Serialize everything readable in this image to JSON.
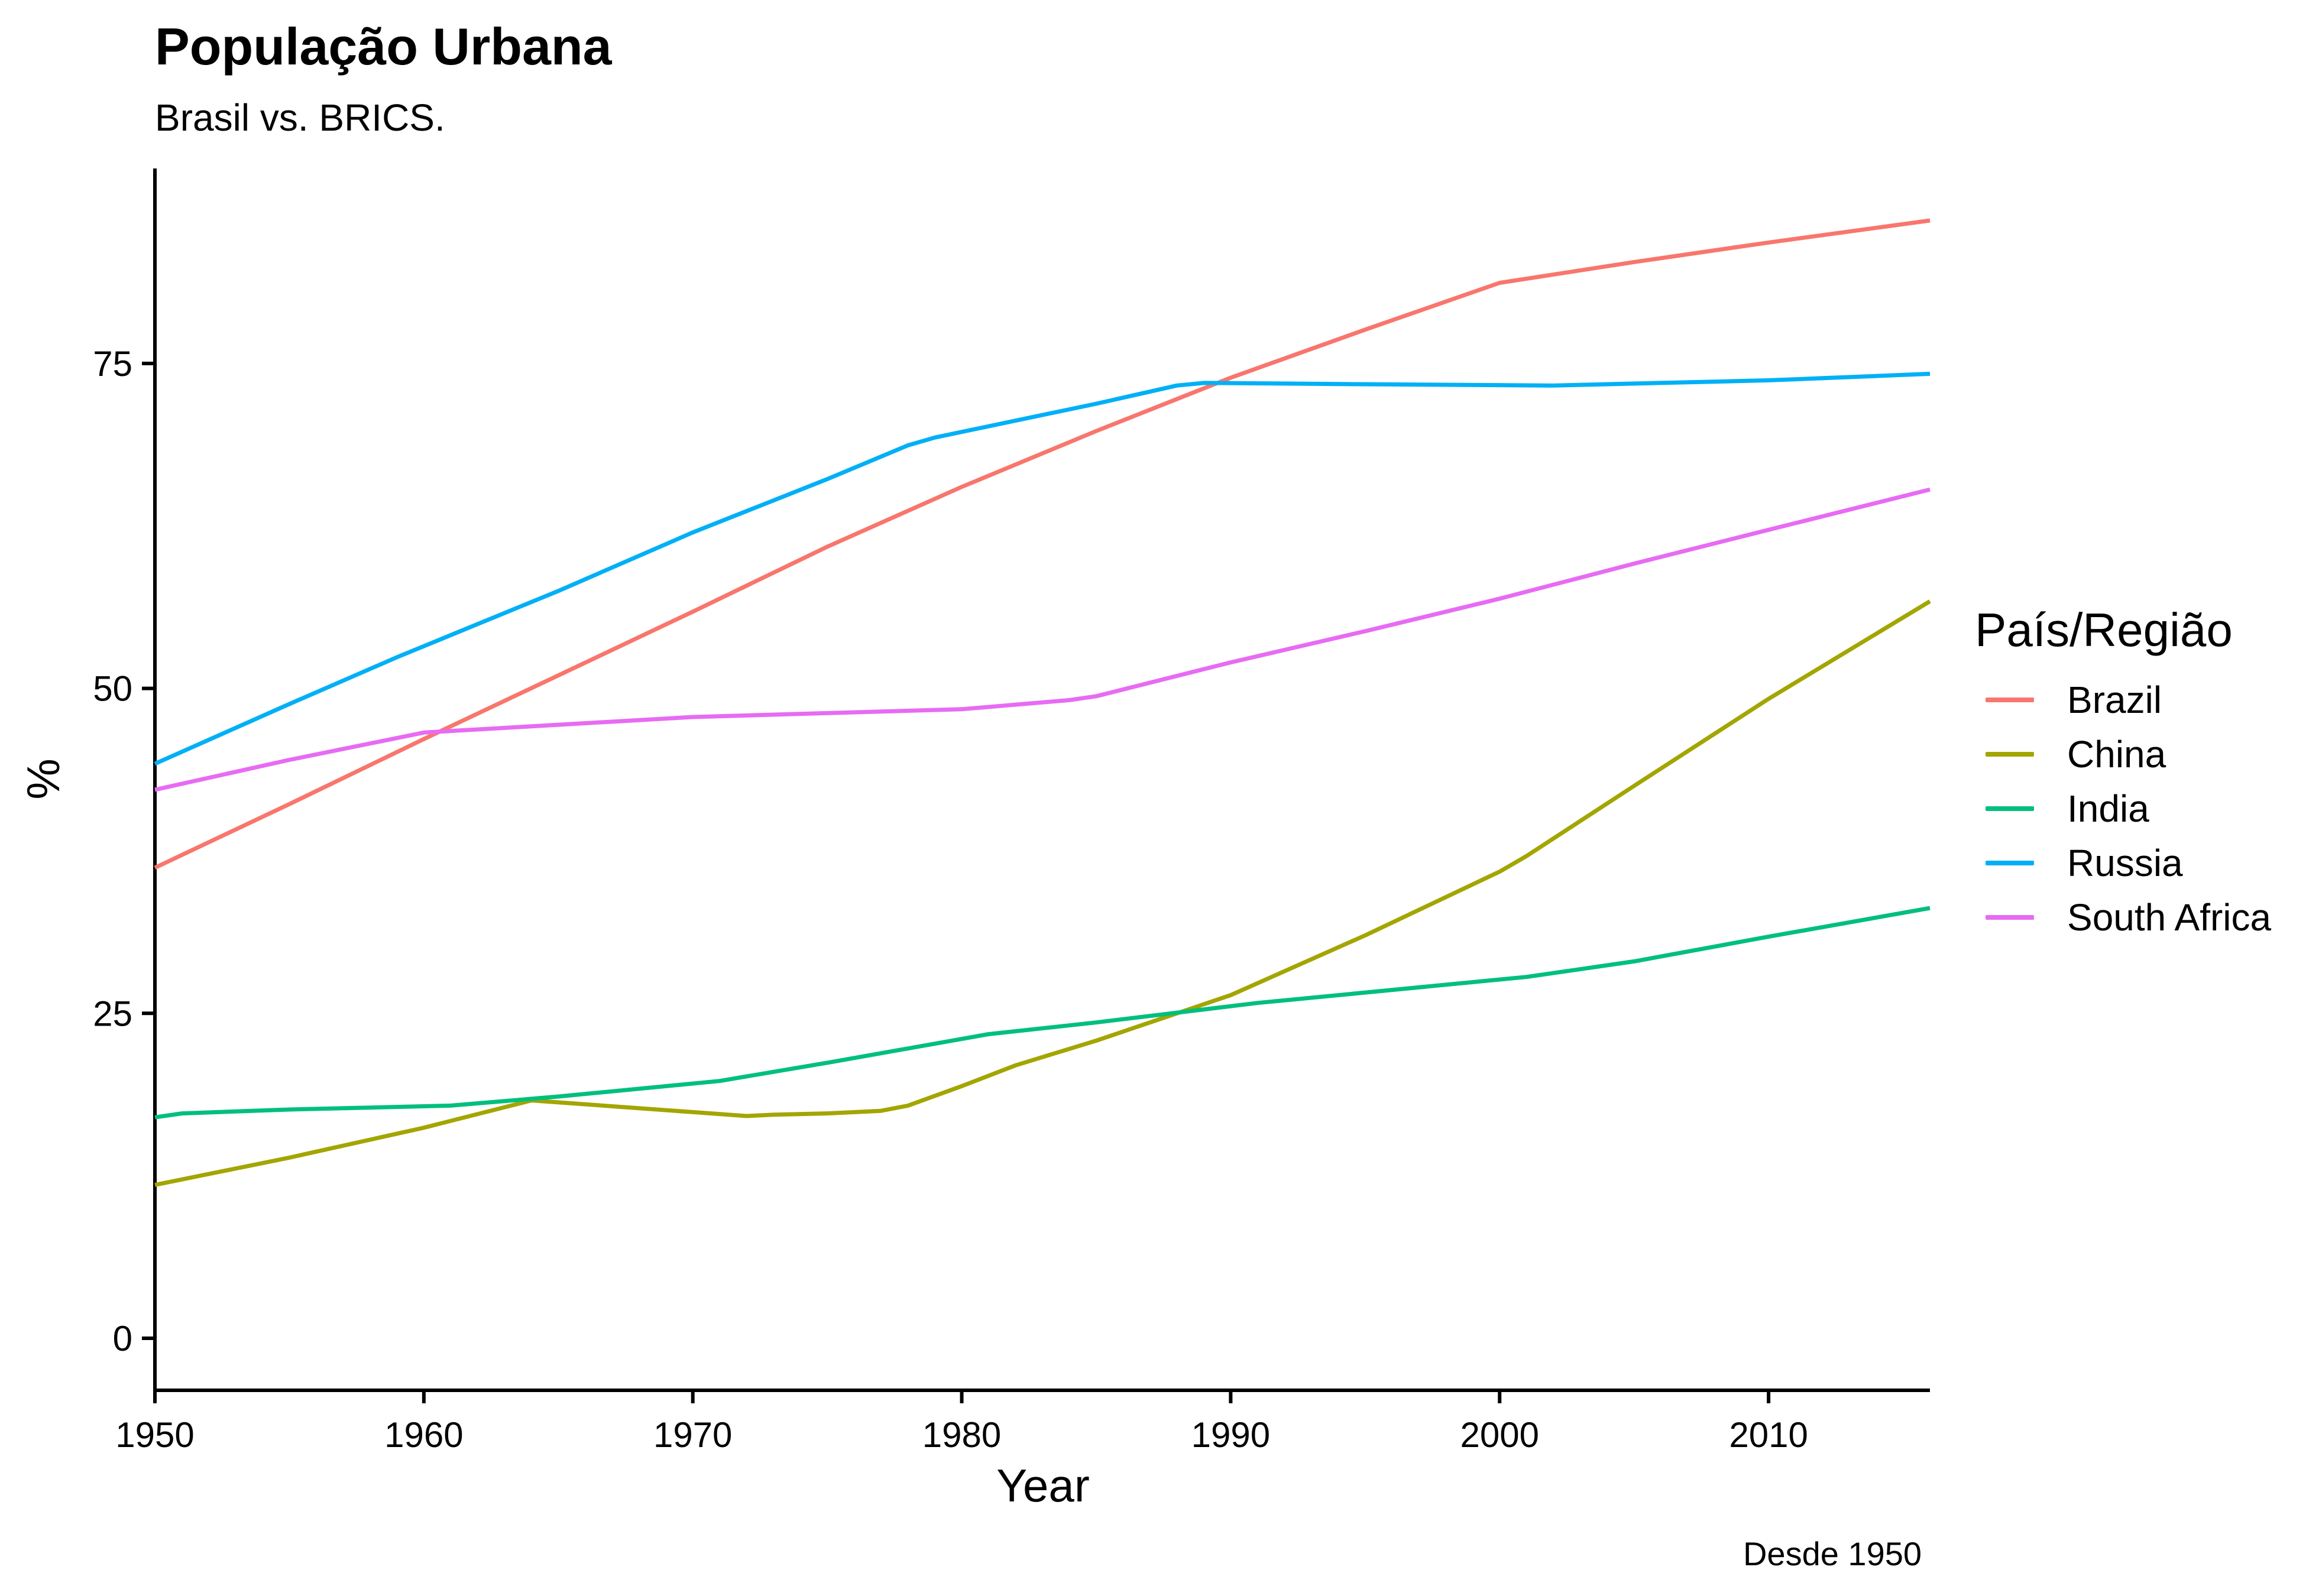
{
  "chart_data": {
    "type": "line",
    "title": "População Urbana",
    "subtitle": "Brasil vs. BRICS.",
    "caption": "Desde 1950",
    "xlabel": "Year",
    "ylabel": "%",
    "xlim": [
      1950,
      2016
    ],
    "ylim": [
      -4,
      90
    ],
    "x_ticks": [
      1950,
      1960,
      1970,
      1980,
      1990,
      2000,
      2010
    ],
    "y_ticks": [
      0,
      25,
      50,
      75
    ],
    "grid": false,
    "legend_title": "País/Região",
    "legend_position": "right",
    "series": [
      {
        "name": "Brazil",
        "color": "#F8766D",
        "points": [
          [
            1950,
            36.2
          ],
          [
            1955,
            41.1
          ],
          [
            1960,
            46.1
          ],
          [
            1965,
            51.0
          ],
          [
            1970,
            55.9
          ],
          [
            1975,
            60.9
          ],
          [
            1980,
            65.5
          ],
          [
            1985,
            69.8
          ],
          [
            1990,
            73.9
          ],
          [
            1995,
            77.6
          ],
          [
            2000,
            81.2
          ],
          [
            2005,
            82.8
          ],
          [
            2010,
            84.3
          ],
          [
            2016,
            86.0
          ]
        ]
      },
      {
        "name": "China",
        "color": "#A3A500",
        "points": [
          [
            1950,
            11.8
          ],
          [
            1955,
            13.9
          ],
          [
            1960,
            16.2
          ],
          [
            1964,
            18.3
          ],
          [
            1970,
            17.4
          ],
          [
            1972,
            17.1
          ],
          [
            1973,
            17.2
          ],
          [
            1975,
            17.3
          ],
          [
            1977,
            17.5
          ],
          [
            1978,
            17.9
          ],
          [
            1980,
            19.4
          ],
          [
            1982,
            21.0
          ],
          [
            1985,
            22.9
          ],
          [
            1990,
            26.4
          ],
          [
            1995,
            31.0
          ],
          [
            2000,
            35.9
          ],
          [
            2001,
            37.1
          ],
          [
            2005,
            42.5
          ],
          [
            2010,
            49.2
          ],
          [
            2016,
            56.7
          ]
        ]
      },
      {
        "name": "India",
        "color": "#00BF7D",
        "points": [
          [
            1950,
            17.0
          ],
          [
            1951,
            17.3
          ],
          [
            1955,
            17.6
          ],
          [
            1961,
            17.9
          ],
          [
            1965,
            18.6
          ],
          [
            1971,
            19.8
          ],
          [
            1975,
            21.2
          ],
          [
            1981,
            23.4
          ],
          [
            1985,
            24.3
          ],
          [
            1991,
            25.8
          ],
          [
            1995,
            26.6
          ],
          [
            2001,
            27.8
          ],
          [
            2005,
            29.0
          ],
          [
            2010,
            30.9
          ],
          [
            2016,
            33.1
          ]
        ]
      },
      {
        "name": "Russia",
        "color": "#00B0F6",
        "points": [
          [
            1950,
            44.2
          ],
          [
            1955,
            48.8
          ],
          [
            1959,
            52.4
          ],
          [
            1965,
            57.5
          ],
          [
            1970,
            62.0
          ],
          [
            1975,
            66.1
          ],
          [
            1978,
            68.7
          ],
          [
            1979,
            69.3
          ],
          [
            1985,
            71.9
          ],
          [
            1988,
            73.3
          ],
          [
            1989,
            73.5
          ],
          [
            1995,
            73.4
          ],
          [
            2002,
            73.3
          ],
          [
            2010,
            73.7
          ],
          [
            2016,
            74.2
          ]
        ]
      },
      {
        "name": "South Africa",
        "color": "#E76BF3",
        "points": [
          [
            1950,
            42.2
          ],
          [
            1955,
            44.5
          ],
          [
            1960,
            46.6
          ],
          [
            1965,
            47.2
          ],
          [
            1970,
            47.8
          ],
          [
            1975,
            48.1
          ],
          [
            1980,
            48.4
          ],
          [
            1984,
            49.1
          ],
          [
            1985,
            49.4
          ],
          [
            1990,
            52.0
          ],
          [
            1995,
            54.4
          ],
          [
            2000,
            56.9
          ],
          [
            2005,
            59.6
          ],
          [
            2010,
            62.2
          ],
          [
            2016,
            65.3
          ]
        ]
      }
    ]
  }
}
